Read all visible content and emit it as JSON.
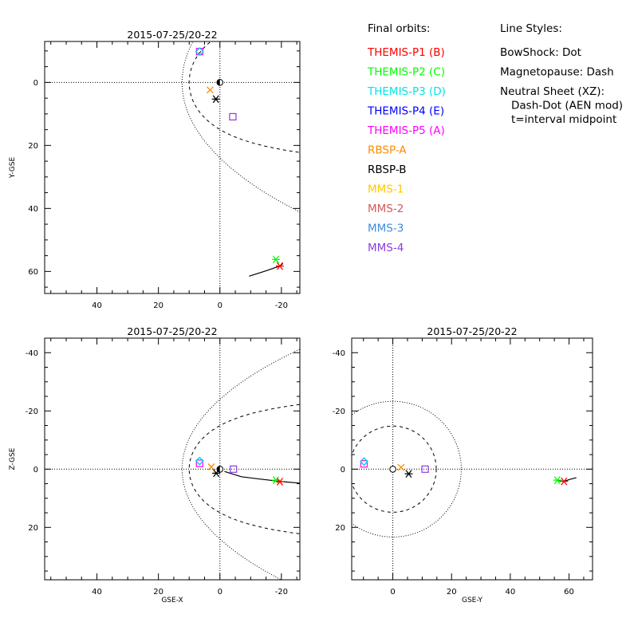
{
  "legend": {
    "orbits_title": "Final orbits:",
    "entries": [
      {
        "label": "THEMIS-P1 (B)",
        "color": "#ff0000"
      },
      {
        "label": "THEMIS-P2 (C)",
        "color": "#00ff00"
      },
      {
        "label": "THEMIS-P3 (D)",
        "color": "#00e5e5"
      },
      {
        "label": "THEMIS-P4 (E)",
        "color": "#0000ff"
      },
      {
        "label": "THEMIS-P5 (A)",
        "color": "#ff00ff"
      },
      {
        "label": "RBSP-A",
        "color": "#ff8c00"
      },
      {
        "label": "RBSP-B",
        "color": "#000000"
      },
      {
        "label": "MMS-1",
        "color": "#ffc800"
      },
      {
        "label": "MMS-2",
        "color": "#d45a5a"
      },
      {
        "label": "MMS-3",
        "color": "#3c8cdc"
      },
      {
        "label": "MMS-4",
        "color": "#8c3cdc"
      }
    ],
    "styles_title": "Line Styles:",
    "styles": [
      "BowShock: Dot",
      "Magnetopause: Dash",
      "Neutral Sheet (XZ):",
      "Dash-Dot (AEN mod)",
      "t=interval midpoint"
    ]
  },
  "chart_data": [
    {
      "id": "xy",
      "type": "scatter",
      "title": "2015-07-25/20-22",
      "xlabel": "",
      "ylabel": "Y-GSE",
      "xlim": [
        57,
        -26
      ],
      "ylim": [
        -13,
        67
      ],
      "xticks": [
        40,
        20,
        0,
        -20
      ],
      "xticklabels": [
        "40",
        "20",
        "0",
        "-20"
      ],
      "yticks": [
        0,
        20,
        40,
        60
      ],
      "yticklabels": [
        "0",
        "20",
        "40",
        "60"
      ],
      "points": [
        {
          "name": "THEMIS-P5 (A)",
          "x": 6.6,
          "y": -9.8,
          "marker": "square",
          "color": "#ff00ff"
        },
        {
          "name": "THEMIS-P4 (E)",
          "x": 6.6,
          "y": -9.8,
          "marker": "diamond",
          "color": "#0000ff"
        },
        {
          "name": "THEMIS-P3 (D)",
          "x": 6.6,
          "y": -9.8,
          "marker": "diamond",
          "color": "#00e5e5"
        },
        {
          "name": "Earth",
          "x": 0,
          "y": 0,
          "marker": "earth",
          "color": "#000000"
        },
        {
          "name": "RBSP-A",
          "x": 3.2,
          "y": 2.4,
          "marker": "x",
          "color": "#ff8c00"
        },
        {
          "name": "RBSP-B",
          "x": 1.3,
          "y": 5.3,
          "marker": "asterisk",
          "color": "#000000"
        },
        {
          "name": "MMS",
          "x": -4.2,
          "y": 10.9,
          "marker": "square",
          "color": "#8c3cdc"
        },
        {
          "name": "THEMIS-P2 (C)",
          "x": -18.2,
          "y": 56.2,
          "marker": "asterisk",
          "color": "#00ff00"
        },
        {
          "name": "THEMIS-P1 (B)",
          "x": -19.5,
          "y": 58.3,
          "marker": "asterisk",
          "color": "#ff0000"
        }
      ],
      "track": {
        "x": [
          -9.5,
          -15,
          -19.5,
          -20.5
        ],
        "y": [
          61.5,
          59.8,
          58.3,
          57.5
        ]
      }
    },
    {
      "id": "xz",
      "type": "scatter",
      "title": "2015-07-25/20-22",
      "xlabel": "GSE-X",
      "ylabel": "Z-GSE",
      "xlim": [
        57,
        -26
      ],
      "ylim": [
        -45,
        38
      ],
      "xticks": [
        40,
        20,
        0,
        -20
      ],
      "xticklabels": [
        "40",
        "20",
        "0",
        "-20"
      ],
      "yticks": [
        -40,
        -20,
        0,
        20
      ],
      "yticklabels": [
        "-40",
        "-20",
        "0",
        "20"
      ],
      "points": [
        {
          "name": "THEMIS-P5 (A)",
          "x": 6.6,
          "y": -2,
          "marker": "square",
          "color": "#ff00ff"
        },
        {
          "name": "THEMIS-P4 (E)",
          "x": 6.6,
          "y": -2.8,
          "marker": "diamond",
          "color": "#0000ff"
        },
        {
          "name": "THEMIS-P3 (D)",
          "x": 6.6,
          "y": -2.8,
          "marker": "diamond",
          "color": "#00e5e5"
        },
        {
          "name": "Earth",
          "x": 0,
          "y": 0,
          "marker": "earth",
          "color": "#000000"
        },
        {
          "name": "RBSP-A",
          "x": 2.8,
          "y": -0.8,
          "marker": "x",
          "color": "#ff8c00"
        },
        {
          "name": "RBSP-B",
          "x": 1.2,
          "y": 1.4,
          "marker": "asterisk",
          "color": "#000000"
        },
        {
          "name": "MMS",
          "x": -4.4,
          "y": 0,
          "marker": "square",
          "color": "#8c3cdc"
        },
        {
          "name": "THEMIS-P2 (C)",
          "x": -18.2,
          "y": 3.8,
          "marker": "asterisk",
          "color": "#00ff00"
        },
        {
          "name": "THEMIS-P1 (B)",
          "x": -19.5,
          "y": 4.3,
          "marker": "asterisk",
          "color": "#ff0000"
        }
      ],
      "track": {
        "x": [
          -1.5,
          -7,
          -13,
          -19.5,
          -26
        ],
        "y": [
          0.8,
          2.6,
          3.4,
          4.2,
          4.8
        ]
      }
    },
    {
      "id": "yz",
      "type": "scatter",
      "title": "2015-07-25/20-22",
      "xlabel": "GSE-Y",
      "ylabel": "",
      "xlim": [
        -14,
        68
      ],
      "ylim": [
        -45,
        38
      ],
      "xticks": [
        0,
        20,
        40,
        60
      ],
      "xticklabels": [
        "0",
        "20",
        "40",
        "60"
      ],
      "yticks": [
        -40,
        -20,
        0,
        20
      ],
      "yticklabels": [
        "-40",
        "-20",
        "0",
        "20"
      ],
      "points": [
        {
          "name": "THEMIS-P5 (A)",
          "x": -9.8,
          "y": -1.8,
          "marker": "square",
          "color": "#ff00ff"
        },
        {
          "name": "THEMIS-P4 (E)",
          "x": -9.8,
          "y": -2.6,
          "marker": "diamond",
          "color": "#0000ff"
        },
        {
          "name": "THEMIS-P3 (D)",
          "x": -9.8,
          "y": -2.6,
          "marker": "diamond",
          "color": "#00e5e5"
        },
        {
          "name": "Earth",
          "x": 0,
          "y": 0,
          "marker": "circle",
          "color": "#000000"
        },
        {
          "name": "RBSP-A",
          "x": 2.8,
          "y": -0.6,
          "marker": "x",
          "color": "#ff8c00"
        },
        {
          "name": "RBSP-B",
          "x": 5.4,
          "y": 1.6,
          "marker": "asterisk",
          "color": "#000000"
        },
        {
          "name": "MMS",
          "x": 11,
          "y": 0,
          "marker": "square",
          "color": "#8c3cdc"
        },
        {
          "name": "THEMIS-P2 (C)",
          "x": 56,
          "y": 3.8,
          "marker": "asterisk",
          "color": "#00ff00"
        },
        {
          "name": "THEMIS-P1 (B)",
          "x": 58.3,
          "y": 4.2,
          "marker": "asterisk",
          "color": "#ff0000"
        }
      ],
      "track": {
        "x": [
          56,
          58.3,
          60,
          62.5
        ],
        "y": [
          3.9,
          4.2,
          3.6,
          2.9
        ]
      }
    }
  ]
}
